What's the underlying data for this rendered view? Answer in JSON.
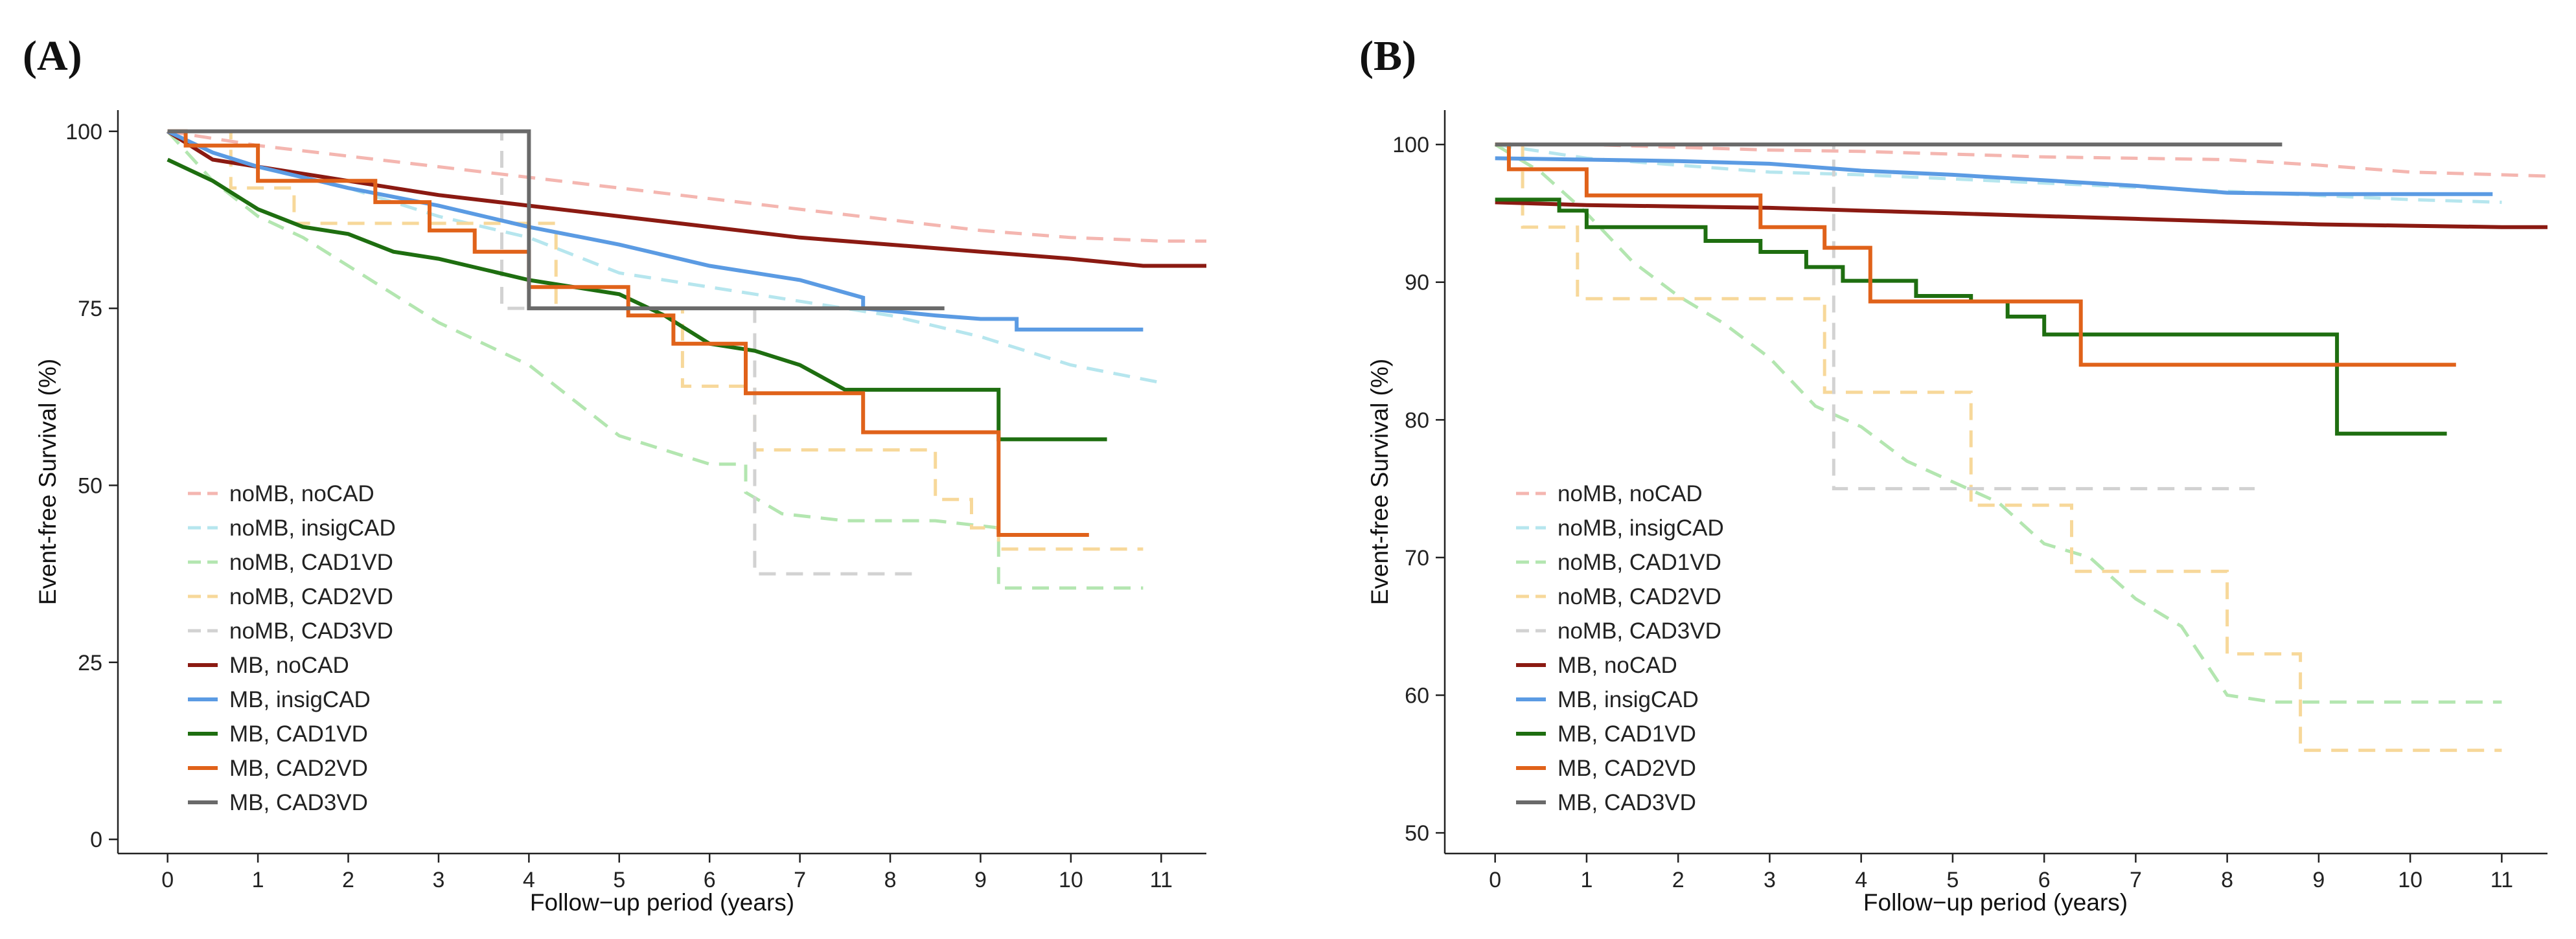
{
  "panels": [
    {
      "label": "(A)"
    },
    {
      "label": "(B)"
    }
  ],
  "legend_labels": [
    "noMB, noCAD",
    "noMB, insigCAD",
    "noMB, CAD1VD",
    "noMB, CAD2VD",
    "noMB, CAD3VD",
    "MB, noCAD",
    "MB, insigCAD",
    "MB, CAD1VD",
    "MB, CAD2VD",
    "MB, CAD3VD"
  ],
  "colors": {
    "noMB_noCAD": "#f4b6b0",
    "noMB_insigCAD": "#b6e6ee",
    "noMB_CAD1VD": "#b3e6b0",
    "noMB_CAD2VD": "#f7d89a",
    "noMB_CAD3VD": "#d2d2d2",
    "MB_noCAD": "#8b1a12",
    "MB_insigCAD": "#5b9be3",
    "MB_CAD1VD": "#1e6e10",
    "MB_CAD2VD": "#e0621a",
    "MB_CAD3VD": "#6a6a6a"
  },
  "chart_data": [
    {
      "type": "line",
      "panel": "(A)",
      "title": "",
      "xlabel": "Follow−up period (years)",
      "ylabel": "Event-free Survival (%)",
      "xlim": [
        -0.55,
        11.5
      ],
      "ylim": [
        -2,
        103
      ],
      "xticks": [
        0,
        1,
        2,
        3,
        4,
        5,
        6,
        7,
        8,
        9,
        10,
        11
      ],
      "yticks": [
        0,
        25,
        50,
        75,
        100
      ],
      "grid": false,
      "legend_position": "bottom-left",
      "series": [
        {
          "name": "noMB, noCAD",
          "dashed": true,
          "color_key": "noMB_noCAD",
          "x": [
            0,
            0.5,
            1,
            2,
            3,
            4,
            5,
            6,
            7,
            8,
            9,
            10,
            11,
            11.5
          ],
          "y": [
            100,
            99,
            98,
            96.5,
            95,
            93.5,
            92,
            90.5,
            89,
            87.5,
            86,
            85,
            84.5,
            84.5
          ]
        },
        {
          "name": "noMB, insigCAD",
          "dashed": true,
          "color_key": "noMB_insigCAD",
          "x": [
            0,
            0.5,
            1,
            2,
            3,
            4,
            5,
            6,
            7,
            8,
            9,
            10,
            11
          ],
          "y": [
            100,
            97,
            95,
            92,
            88,
            85,
            80,
            78,
            76,
            74,
            71,
            67,
            64.5
          ]
        },
        {
          "name": "noMB, CAD1VD",
          "dashed": true,
          "color_key": "noMB_CAD1VD",
          "x": [
            0,
            0.5,
            1,
            1.5,
            2,
            2.5,
            3,
            3.5,
            4,
            4.5,
            5,
            5.5,
            6,
            6.4,
            6.4,
            6.8,
            7.5,
            8.5,
            9.2,
            9.2,
            10.8
          ],
          "y": [
            100,
            93,
            88,
            85,
            81,
            77,
            73,
            70,
            67,
            62,
            57,
            55,
            53,
            53,
            49,
            46,
            45,
            45,
            44,
            35.5,
            35.5
          ]
        },
        {
          "name": "noMB, CAD2VD",
          "dashed": true,
          "color_key": "noMB_CAD2VD",
          "x": [
            0,
            0.7,
            0.7,
            1.4,
            1.4,
            4.3,
            4.3,
            5.7,
            5.7,
            6.5,
            6.5,
            7.5,
            7.5,
            8.5,
            8.5,
            8.9,
            8.9,
            9.2,
            9.2,
            10.8
          ],
          "y": [
            100,
            100,
            92,
            92,
            87,
            87,
            75,
            75,
            64,
            64,
            55,
            55,
            55,
            55,
            48,
            48,
            44,
            44,
            41,
            41
          ]
        },
        {
          "name": "noMB, CAD3VD",
          "dashed": true,
          "color_key": "noMB_CAD3VD",
          "x": [
            0,
            3.7,
            3.7,
            6.5,
            6.5,
            8.3
          ],
          "y": [
            100,
            100,
            75,
            75,
            37.5,
            37.5
          ]
        },
        {
          "name": "MB, noCAD",
          "dashed": false,
          "color_key": "MB_noCAD",
          "x": [
            0,
            0.5,
            1,
            2,
            3,
            4,
            5,
            6,
            7,
            8,
            9,
            10,
            10.8,
            11.5
          ],
          "y": [
            100,
            96,
            95,
            93,
            91,
            89.5,
            88,
            86.5,
            85,
            84,
            83,
            82,
            81,
            81
          ]
        },
        {
          "name": "MB, insigCAD",
          "dashed": false,
          "color_key": "MB_insigCAD",
          "x": [
            0,
            0.5,
            1,
            2,
            3,
            4,
            5,
            6,
            7,
            7.7,
            7.7,
            8.5,
            9,
            9.4,
            9.4,
            10.8
          ],
          "y": [
            100,
            97,
            95,
            92,
            89.5,
            86.5,
            84,
            81,
            79,
            76.5,
            75,
            74,
            73.5,
            73.5,
            72,
            72
          ]
        },
        {
          "name": "MB, CAD1VD",
          "dashed": false,
          "color_key": "MB_CAD1VD",
          "x": [
            0,
            0.5,
            1,
            1.5,
            2,
            2.5,
            3,
            3.5,
            4,
            4.5,
            5,
            5.5,
            6,
            6.5,
            7,
            7.5,
            9.2,
            9.2,
            10.4
          ],
          "y": [
            96,
            93,
            89,
            86.5,
            85.5,
            83,
            82,
            80.5,
            79,
            78,
            77,
            74,
            70,
            69,
            67,
            63.5,
            63.5,
            56.5,
            56.5
          ]
        },
        {
          "name": "MB, CAD2VD",
          "dashed": false,
          "color_key": "MB_CAD2VD",
          "x": [
            0,
            0.2,
            0.2,
            1,
            1,
            2.3,
            2.3,
            2.9,
            2.9,
            3.4,
            3.4,
            4,
            4,
            5.1,
            5.1,
            5.6,
            5.6,
            6.4,
            6.4,
            7.7,
            7.7,
            9.2,
            9.2,
            10.2
          ],
          "y": [
            100,
            100,
            98,
            98,
            93,
            93,
            90,
            90,
            86,
            86,
            83,
            83,
            78,
            78,
            74,
            74,
            70,
            70,
            63,
            63,
            57.5,
            57.5,
            43,
            43
          ]
        },
        {
          "name": "MB, CAD3VD",
          "dashed": false,
          "color_key": "MB_CAD3VD",
          "x": [
            0,
            4.0,
            4.0,
            8.6
          ],
          "y": [
            100,
            100,
            75,
            75
          ]
        }
      ]
    },
    {
      "type": "line",
      "panel": "(B)",
      "title": "",
      "xlabel": "Follow−up period (years)",
      "ylabel": "Event-free Survival (%)",
      "xlim": [
        -0.55,
        11.5
      ],
      "ylim": [
        48.5,
        102.5
      ],
      "xticks": [
        0,
        1,
        2,
        3,
        4,
        5,
        6,
        7,
        8,
        9,
        10,
        11
      ],
      "yticks": [
        50,
        60,
        70,
        80,
        90,
        100
      ],
      "grid": false,
      "legend_position": "bottom-left",
      "series": [
        {
          "name": "noMB, noCAD",
          "dashed": true,
          "color_key": "noMB_noCAD",
          "x": [
            0,
            1,
            2,
            3,
            4,
            5,
            6,
            7,
            8,
            9,
            10,
            11,
            11.5
          ],
          "y": [
            100,
            100,
            99.8,
            99.6,
            99.5,
            99.3,
            99.1,
            99,
            98.9,
            98.5,
            98,
            97.8,
            97.7
          ]
        },
        {
          "name": "noMB, insigCAD",
          "dashed": true,
          "color_key": "noMB_insigCAD",
          "x": [
            0,
            1,
            2,
            3,
            4,
            5,
            6,
            7,
            8,
            9,
            10,
            11
          ],
          "y": [
            100,
            99,
            98.5,
            98,
            97.8,
            97.5,
            97.2,
            96.9,
            96.6,
            96.3,
            96,
            95.8
          ]
        },
        {
          "name": "noMB, CAD1VD",
          "dashed": true,
          "color_key": "noMB_CAD1VD",
          "x": [
            0,
            0.5,
            1,
            1.5,
            2,
            2.5,
            3,
            3.5,
            4,
            4.5,
            5,
            5.5,
            6,
            6.5,
            7,
            7.5,
            8,
            8.5,
            11
          ],
          "y": [
            100,
            98,
            95,
            91.5,
            89,
            87,
            84.5,
            81,
            79.5,
            77,
            75.5,
            74,
            71,
            70,
            67,
            65,
            60,
            59.5,
            59.5
          ]
        },
        {
          "name": "noMB, CAD2VD",
          "dashed": true,
          "color_key": "noMB_CAD2VD",
          "x": [
            0,
            0.3,
            0.3,
            0.9,
            0.9,
            3.6,
            3.6,
            5.2,
            5.2,
            6.3,
            6.3,
            8,
            8,
            8.8,
            8.8,
            11
          ],
          "y": [
            100,
            100,
            94,
            94,
            88.8,
            88.8,
            82,
            82,
            73.8,
            73.8,
            69,
            69,
            63,
            63,
            56,
            56
          ]
        },
        {
          "name": "noMB, CAD3VD",
          "dashed": true,
          "color_key": "noMB_CAD3VD",
          "x": [
            0,
            3.7,
            3.7,
            8.3
          ],
          "y": [
            100,
            100,
            75,
            75
          ]
        },
        {
          "name": "MB, noCAD",
          "dashed": false,
          "color_key": "MB_noCAD",
          "x": [
            0,
            1,
            2,
            3,
            4,
            5,
            6,
            7,
            8,
            9,
            10,
            11,
            11.5
          ],
          "y": [
            95.8,
            95.6,
            95.5,
            95.4,
            95.2,
            95,
            94.8,
            94.6,
            94.4,
            94.2,
            94.1,
            94,
            94
          ]
        },
        {
          "name": "MB, insigCAD",
          "dashed": false,
          "color_key": "MB_insigCAD",
          "x": [
            0,
            1,
            2,
            3,
            4,
            5,
            6,
            7,
            8,
            9,
            10,
            10.9
          ],
          "y": [
            99,
            98.9,
            98.8,
            98.6,
            98.1,
            97.8,
            97.4,
            97,
            96.5,
            96.4,
            96.4,
            96.4
          ]
        },
        {
          "name": "MB, CAD1VD",
          "dashed": false,
          "color_key": "MB_CAD1VD",
          "x": [
            0,
            0.7,
            0.7,
            1,
            1,
            2.3,
            2.3,
            2.9,
            2.9,
            3.4,
            3.4,
            3.8,
            3.8,
            4.6,
            4.6,
            5.2,
            5.2,
            5.6,
            5.6,
            6,
            6,
            9.2,
            9.2,
            10.4
          ],
          "y": [
            96,
            96,
            95.2,
            95.2,
            94,
            94,
            93,
            93,
            92.2,
            92.2,
            91.1,
            91.1,
            90.1,
            90.1,
            89,
            89,
            88.6,
            88.6,
            87.5,
            87.5,
            86.2,
            86.2,
            79,
            79
          ]
        },
        {
          "name": "MB, CAD2VD",
          "dashed": false,
          "color_key": "MB_CAD2VD",
          "x": [
            0,
            0.15,
            0.15,
            1,
            1,
            2.9,
            2.9,
            3.6,
            3.6,
            4.1,
            4.1,
            6.4,
            6.4,
            10.5
          ],
          "y": [
            100,
            100,
            98.2,
            98.2,
            96.3,
            96.3,
            94,
            94,
            92.5,
            92.5,
            88.6,
            88.6,
            84,
            84
          ]
        },
        {
          "name": "MB, CAD3VD",
          "dashed": false,
          "color_key": "MB_CAD3VD",
          "x": [
            0,
            8.6
          ],
          "y": [
            100,
            100
          ]
        }
      ]
    }
  ]
}
